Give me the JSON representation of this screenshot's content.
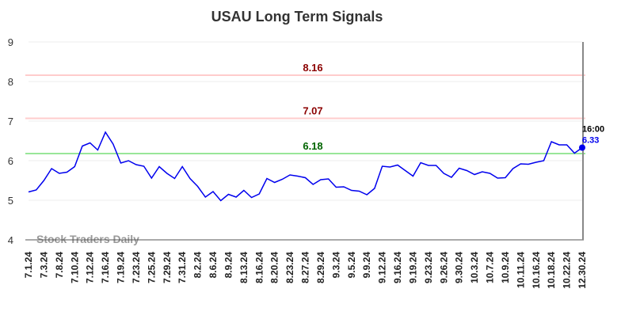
{
  "chart_data": {
    "type": "line",
    "title": "USAU Long Term Signals",
    "categories": [
      "7.1.24",
      null,
      "7.3.24",
      null,
      "7.8.24",
      null,
      "7.10.24",
      null,
      "7.12.24",
      null,
      "7.16.24",
      null,
      "7.19.24",
      null,
      "7.23.24",
      null,
      "7.25.24",
      null,
      "7.29.24",
      null,
      "7.31.24",
      null,
      "8.2.24",
      null,
      "8.6.24",
      null,
      "8.9.24",
      null,
      "8.13.24",
      null,
      "8.16.24",
      null,
      "8.20.24",
      null,
      "8.23.24",
      null,
      "8.27.24",
      null,
      "8.29.24",
      null,
      "9.3.24",
      null,
      "9.5.24",
      null,
      "9.9.24",
      null,
      "9.12.24",
      null,
      "9.16.24",
      null,
      "9.19.24",
      null,
      "9.23.24",
      null,
      "9.26.24",
      null,
      "9.30.24",
      null,
      "10.3.24",
      null,
      "10.7.24",
      null,
      "10.9.24",
      null,
      "10.11.24",
      null,
      "10.16.24",
      null,
      "10.18.24",
      null,
      "10.22.24",
      null,
      "12.30.24"
    ],
    "series": [
      {
        "color": "#0000ee",
        "values": [
          5.21,
          5.26,
          5.5,
          5.8,
          5.68,
          5.71,
          5.85,
          6.37,
          6.45,
          6.27,
          6.72,
          6.42,
          5.94,
          6.0,
          5.9,
          5.86,
          5.56,
          5.85,
          5.68,
          5.55,
          5.85,
          5.55,
          5.35,
          5.08,
          5.22,
          4.99,
          5.15,
          5.08,
          5.25,
          5.07,
          5.16,
          5.55,
          5.45,
          5.53,
          5.64,
          5.61,
          5.57,
          5.4,
          5.52,
          5.54,
          5.33,
          5.34,
          5.25,
          5.23,
          5.14,
          5.3,
          5.86,
          5.84,
          5.89,
          5.75,
          5.61,
          5.95,
          5.88,
          5.88,
          5.68,
          5.58,
          5.81,
          5.75,
          5.65,
          5.72,
          5.68,
          5.56,
          5.57,
          5.8,
          5.92,
          5.91,
          5.96,
          6.0,
          6.48,
          6.4,
          6.4,
          6.19,
          6.33
        ]
      }
    ],
    "reference_lines": [
      {
        "value": 8.16,
        "color": "#ffcccc",
        "label_color": "#8b0000"
      },
      {
        "value": 7.07,
        "color": "#ffcccc",
        "label_color": "#8b0000"
      },
      {
        "value": 6.18,
        "color": "#99e699",
        "label_color": "#006400"
      }
    ],
    "last_time": "16:00",
    "watermark": "Stock Traders Daily",
    "ylim": [
      4,
      9
    ],
    "yticks": [
      4,
      5,
      6,
      7,
      8,
      9
    ],
    "grid": true
  }
}
